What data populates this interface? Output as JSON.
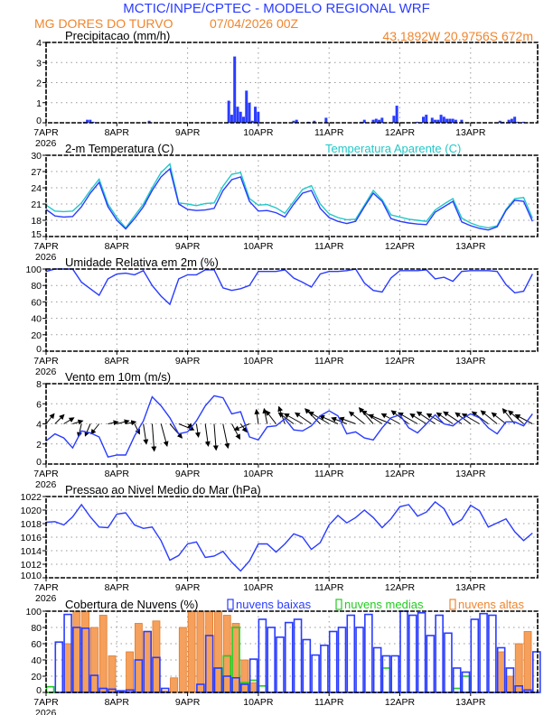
{
  "header": {
    "title": "MCTIC/INPE/CPTEC - MODELO REGIONAL WRF",
    "station": "MG DORES DO TURVO",
    "run": "07/04/2026 00Z",
    "coords": "43.1892W 20.9756S 672m"
  },
  "colors": {
    "title": "#2a3cff",
    "orange": "#f0852d",
    "blue": "#2a3cff",
    "cyan": "#22c8c8",
    "green": "#22cc22",
    "high": "#f5a05c"
  },
  "xaxis": {
    "ticks": [
      "7APR",
      "8APR",
      "9APR",
      "10APR",
      "11APR",
      "12APR",
      "13APR"
    ],
    "year": "2026"
  },
  "chart_data": [
    {
      "id": "precip",
      "type": "bar",
      "title": "Precipitacao (mm/h)",
      "ylim": [
        0,
        4
      ],
      "yticks": [
        "0",
        "1",
        "2",
        "3",
        "4"
      ],
      "values": [
        0,
        0,
        0,
        0,
        0,
        0,
        0,
        0,
        0,
        0,
        0,
        0,
        0,
        0.05,
        0.15,
        0.15,
        0.05,
        0,
        0,
        0,
        0,
        0,
        0,
        0,
        0,
        0,
        0,
        0,
        0,
        0,
        0,
        0,
        0,
        0,
        0,
        0.1,
        0,
        0,
        0,
        0,
        0,
        0,
        0,
        0,
        0,
        0,
        0,
        0,
        0,
        0,
        0,
        0,
        0,
        0,
        0,
        0,
        0,
        0,
        0,
        0,
        0,
        0,
        1.1,
        0.4,
        3.3,
        0.8,
        0.55,
        0.3,
        1.6,
        1.0,
        0.1,
        0.8,
        0.55,
        0,
        0,
        0,
        0,
        0,
        0,
        0,
        0,
        0,
        0,
        0,
        0.1,
        0.15,
        0,
        0,
        0,
        0.05,
        0,
        0.1,
        0,
        0,
        0,
        0.25,
        0,
        0,
        0,
        0,
        0,
        0,
        0,
        0,
        0,
        0,
        0,
        0.05,
        0.15,
        0,
        0,
        0.15,
        0.2,
        0.15,
        0.25,
        0,
        0,
        0,
        0.35,
        0.85,
        0,
        0,
        0,
        0,
        0,
        0,
        0.05,
        0,
        0.3,
        0.4,
        0,
        0.25,
        0.15,
        0.15,
        0.4,
        0.3,
        0.2,
        0.2,
        0.2,
        0.15,
        0,
        0.15,
        0,
        0,
        0,
        0,
        0,
        0,
        0,
        0,
        0,
        0,
        0,
        0,
        0.1,
        0.05,
        0,
        0.15,
        0.2,
        0.3,
        0.05,
        0,
        0.05,
        0,
        0,
        0
      ]
    },
    {
      "id": "temp",
      "type": "line",
      "title": "2-m Temperatura (C)",
      "ylim": [
        15,
        30
      ],
      "yticks": [
        "15",
        "18",
        "21",
        "24",
        "27",
        "30"
      ],
      "series": [
        {
          "name": "Temperatura Aparente (C)",
          "color": "#22c8c8",
          "values": [
            20.8,
            19.7,
            19.6,
            19.7,
            21.2,
            23.5,
            25.6,
            21.0,
            18.5,
            16.6,
            18.8,
            21.0,
            24.0,
            26.8,
            28.4,
            21.2,
            21.0,
            20.7,
            21.1,
            21.2,
            24.3,
            26.5,
            26.8,
            22.0,
            20.8,
            20.9,
            20.3,
            19.3,
            21.5,
            23.7,
            24.4,
            21.0,
            19.2,
            18.5,
            18.1,
            18.2,
            20.8,
            23.5,
            21.8,
            19.0,
            18.6,
            18.2,
            18.0,
            17.8,
            19.9,
            21.0,
            22.0,
            18.4,
            17.5,
            16.9,
            16.6,
            17.0,
            20.0,
            22.0,
            22.2,
            18.4
          ]
        },
        {
          "color": "#2a3cff",
          "values": [
            20.0,
            18.8,
            18.6,
            18.7,
            20.5,
            23.0,
            25.0,
            20.5,
            18.0,
            16.4,
            18.3,
            20.5,
            23.5,
            26.0,
            27.5,
            21.0,
            20.0,
            19.8,
            19.9,
            20.2,
            23.5,
            25.5,
            26.0,
            21.5,
            19.7,
            19.8,
            19.4,
            18.6,
            21.0,
            23.0,
            23.5,
            20.2,
            18.5,
            17.8,
            17.4,
            17.8,
            20.5,
            23.0,
            21.5,
            18.3,
            17.8,
            17.5,
            17.3,
            17.2,
            19.5,
            20.5,
            21.5,
            17.7,
            17.0,
            16.5,
            16.2,
            16.8,
            19.8,
            21.7,
            21.5,
            17.8
          ]
        }
      ]
    },
    {
      "id": "rh",
      "type": "line",
      "title": "Umidade Relativa em 2m (%)",
      "ylim": [
        0,
        100
      ],
      "yticks": [
        "0",
        "20",
        "40",
        "60",
        "80",
        "100"
      ],
      "series": [
        {
          "color": "#2a3cff",
          "values": [
            97,
            100,
            100,
            100,
            84,
            76,
            68,
            88,
            94,
            95,
            93,
            98,
            80,
            67,
            57,
            88,
            93,
            93,
            99,
            99,
            77,
            74,
            76,
            80,
            97,
            97,
            97,
            99,
            89,
            84,
            78,
            94,
            97,
            97,
            98,
            100,
            83,
            74,
            72,
            89,
            98,
            98,
            98,
            99,
            88,
            90,
            85,
            97,
            98,
            98,
            98,
            97,
            81,
            71,
            73,
            94
          ]
        }
      ]
    },
    {
      "id": "wind",
      "type": "line",
      "title": "Vento em 10m (m/s)",
      "ylim": [
        0,
        8
      ],
      "yticks": [
        "0",
        "2",
        "4",
        "6",
        "8"
      ],
      "series": [
        {
          "color": "#2a3cff",
          "values": [
            2.3,
            3.0,
            2.6,
            1.6,
            3.3,
            3.1,
            2.7,
            0.7,
            0.9,
            0.9,
            2.8,
            4.3,
            6.7,
            5.8,
            4.6,
            3.0,
            3.2,
            4.3,
            5.8,
            6.8,
            6.6,
            5.0,
            5.2,
            2.7,
            2.4,
            3.7,
            3.8,
            4.5,
            3.4,
            3.3,
            3.8,
            4.8,
            5.3,
            4.8,
            3.0,
            3.2,
            2.6,
            2.4,
            3.6,
            4.6,
            4.9,
            3.6,
            3.1,
            4.0,
            4.9,
            4.0,
            3.8,
            4.5,
            5.0,
            4.6,
            3.6,
            3.0,
            4.2,
            4.2,
            3.8,
            5.0
          ]
        }
      ],
      "vectors": {
        "baseline": 4,
        "u": [
          0.8,
          0.9,
          1.0,
          1.0,
          -0.3,
          -0.5,
          -0.8,
          1.0,
          1.2,
          1.0,
          0.5,
          0.3,
          0.2,
          0.6,
          1.2,
          1.5,
          0.5,
          0.2,
          0.3,
          0.2,
          0.5,
          0.8,
          0.6,
          -1.5,
          -0.2,
          -0.3,
          -1.0,
          -0.6,
          -1.5,
          -1.8,
          -1.6,
          -1.5,
          -2.0,
          -1.8,
          -1.5,
          -1.6,
          -1.5,
          -1.4,
          -2.0,
          -2.2,
          -1.8,
          -1.7,
          -1.9,
          -1.6,
          -1.8,
          -1.7,
          -1.6,
          -1.8,
          -1.5,
          -1.7,
          -1.6,
          -1.6,
          -1.4,
          -1.2,
          -1.5,
          -1.7
        ],
        "v": [
          1.0,
          0.9,
          0.6,
          0.3,
          -1.3,
          -1.2,
          -1.0,
          0.2,
          0.3,
          0.2,
          -1.0,
          -2.0,
          -2.7,
          -2.2,
          -1.4,
          -0.6,
          -0.4,
          -1.3,
          -2.2,
          -2.6,
          -2.4,
          -1.5,
          -0.8,
          -0.6,
          1.4,
          1.5,
          1.3,
          1.7,
          1.1,
          1.0,
          1.1,
          1.5,
          1.2,
          0.8,
          0.6,
          0.6,
          1.2,
          1.6,
          1.3,
          0.9,
          1.0,
          1.3,
          1.1,
          1.0,
          1.2,
          1.0,
          1.1,
          1.2,
          1.1,
          1.0,
          1.2,
          1.3,
          1.1,
          1.5,
          1.3,
          0.9
        ]
      }
    },
    {
      "id": "pres",
      "type": "line",
      "title": "Pressao ao Nivel Medio do Mar (hPa)",
      "ylim": [
        1010,
        1022
      ],
      "yticks": [
        "1010",
        "1012",
        "1014",
        "1016",
        "1018",
        "1020",
        "1022"
      ],
      "series": [
        {
          "color": "#2a3cff",
          "values": [
            1018.2,
            1018.3,
            1017.8,
            1019.0,
            1020.8,
            1019.0,
            1017.5,
            1017.4,
            1019.4,
            1019.6,
            1017.8,
            1017.3,
            1017.5,
            1015.5,
            1012.6,
            1013.3,
            1015.0,
            1015.3,
            1013.0,
            1013.2,
            1013.9,
            1012.3,
            1011.0,
            1012.5,
            1015.0,
            1015.0,
            1013.8,
            1015.0,
            1016.5,
            1016.0,
            1014.2,
            1015.2,
            1017.8,
            1019.2,
            1018.1,
            1018.9,
            1020.0,
            1018.9,
            1017.4,
            1018.7,
            1020.5,
            1020.8,
            1019.1,
            1019.7,
            1021.2,
            1020.2,
            1017.8,
            1018.6,
            1020.7,
            1019.9,
            1017.5,
            1018.1,
            1018.7,
            1016.8,
            1015.5,
            1016.6
          ]
        }
      ]
    },
    {
      "id": "cloud",
      "type": "bar",
      "title": "Cobertura de Nuvens (%)",
      "ylim": [
        0,
        100
      ],
      "yticks": [
        "0",
        "20",
        "40",
        "60",
        "80",
        "100"
      ],
      "series": [
        {
          "name": "nuvens altas",
          "color": "#f0852d",
          "values": [
            0,
            0,
            60,
            100,
            100,
            80,
            95,
            45,
            0,
            50,
            85,
            75,
            88,
            2,
            18,
            80,
            100,
            100,
            100,
            100,
            95,
            85,
            40,
            12,
            0,
            0,
            0,
            0,
            0,
            0,
            0,
            0,
            0,
            0,
            0,
            0,
            0,
            0,
            0,
            0,
            0,
            0,
            0,
            0,
            0,
            0,
            0,
            0,
            0,
            0,
            0,
            50,
            20,
            60,
            75,
            0
          ]
        },
        {
          "name": "nuvens medias",
          "color": "#22cc22",
          "values": [
            7,
            0,
            0,
            0,
            0,
            0,
            0,
            0,
            0,
            0,
            0,
            0,
            0,
            0,
            0,
            0,
            0,
            0,
            0,
            30,
            45,
            80,
            12,
            15,
            8,
            0,
            0,
            0,
            0,
            0,
            0,
            0,
            0,
            0,
            0,
            0,
            0,
            0,
            30,
            0,
            0,
            0,
            0,
            0,
            0,
            0,
            5,
            20,
            0,
            0,
            0,
            0,
            0,
            0,
            0,
            0
          ]
        },
        {
          "name": "nuvens baixas",
          "color": "#2a3cff",
          "values": [
            0,
            62,
            96,
            80,
            79,
            21,
            5,
            4,
            2,
            3,
            40,
            75,
            43,
            5,
            0,
            0,
            0,
            10,
            70,
            30,
            20,
            18,
            10,
            41,
            90,
            80,
            68,
            86,
            90,
            65,
            46,
            58,
            75,
            80,
            95,
            80,
            96,
            55,
            45,
            45,
            100,
            95,
            98,
            70,
            95,
            73,
            30,
            25,
            90,
            97,
            95,
            55,
            30,
            8,
            3,
            50
          ]
        }
      ]
    }
  ]
}
